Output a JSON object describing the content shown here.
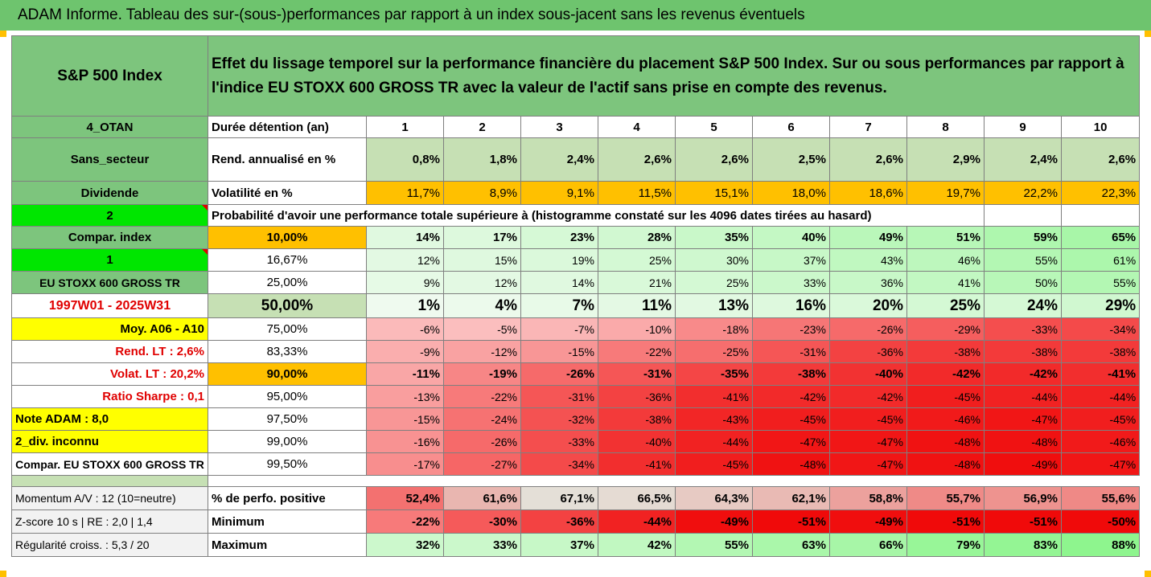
{
  "title": "ADAM Informe. Tableau des sur-(sous-)performances par rapport à un index sous-jacent sans les revenus éventuels",
  "header": {
    "asset": "S&P 500 Index",
    "description": "Effet du lissage temporel sur la performance financière du placement S&P 500 Index. Sur ou sous performances par rapport à l'indice EU STOXX 600 GROSS TR avec la valeur de l'actif sans prise en compte des revenus."
  },
  "years": [
    "1",
    "2",
    "3",
    "4",
    "5",
    "6",
    "7",
    "8",
    "9",
    "10"
  ],
  "rows": {
    "duration": {
      "left": "4_OTAN",
      "label": "Durée détention (an)"
    },
    "rend": {
      "left": "Sans_secteur",
      "label": "Rend. annualisé en %",
      "values": [
        "0,8%",
        "1,8%",
        "2,4%",
        "2,6%",
        "2,6%",
        "2,5%",
        "2,6%",
        "2,9%",
        "2,4%",
        "2,6%"
      ]
    },
    "vol": {
      "left": "Dividende",
      "label": "Volatilité en %",
      "values": [
        "11,7%",
        "8,9%",
        "9,1%",
        "11,5%",
        "15,1%",
        "18,0%",
        "18,6%",
        "19,7%",
        "22,2%",
        "22,3%"
      ]
    },
    "prob_header": {
      "left": "2",
      "label": "Probabilité d'avoir une performance totale supérieure à (histogramme constaté sur les 4096 dates tirées au hasard)"
    }
  },
  "percentile_rows": [
    {
      "left": "Compar. index",
      "pct": "10,00%",
      "values": [
        "14%",
        "17%",
        "23%",
        "28%",
        "35%",
        "40%",
        "49%",
        "51%",
        "59%",
        "65%"
      ]
    },
    {
      "left": "1",
      "pct": "16,67%",
      "values": [
        "12%",
        "15%",
        "19%",
        "25%",
        "30%",
        "37%",
        "43%",
        "46%",
        "55%",
        "61%"
      ]
    },
    {
      "left": "EU STOXX 600 GROSS TR",
      "pct": "25,00%",
      "values": [
        "9%",
        "12%",
        "14%",
        "21%",
        "25%",
        "33%",
        "36%",
        "41%",
        "50%",
        "55%"
      ]
    },
    {
      "left": "1997W01 - 2025W31",
      "pct": "50,00%",
      "values": [
        "1%",
        "4%",
        "7%",
        "11%",
        "13%",
        "16%",
        "20%",
        "25%",
        "24%",
        "29%"
      ]
    },
    {
      "left": "Moy. A06 - A10",
      "pct": "75,00%",
      "values": [
        "-6%",
        "-5%",
        "-7%",
        "-10%",
        "-18%",
        "-23%",
        "-26%",
        "-29%",
        "-33%",
        "-34%"
      ]
    },
    {
      "left": "Rend. LT :    2,6%",
      "pct": "83,33%",
      "values": [
        "-9%",
        "-12%",
        "-15%",
        "-22%",
        "-25%",
        "-31%",
        "-36%",
        "-38%",
        "-38%",
        "-38%"
      ]
    },
    {
      "left": "Volat. LT :   20,2%",
      "pct": "90,00%",
      "values": [
        "-11%",
        "-19%",
        "-26%",
        "-31%",
        "-35%",
        "-38%",
        "-40%",
        "-42%",
        "-42%",
        "-41%"
      ]
    },
    {
      "left": "Ratio Sharpe :   0,1",
      "pct": "95,00%",
      "values": [
        "-13%",
        "-22%",
        "-31%",
        "-36%",
        "-41%",
        "-42%",
        "-42%",
        "-45%",
        "-44%",
        "-44%"
      ]
    },
    {
      "left": "Note ADAM : 8,0",
      "pct": "97,50%",
      "values": [
        "-15%",
        "-24%",
        "-32%",
        "-38%",
        "-43%",
        "-45%",
        "-45%",
        "-46%",
        "-47%",
        "-45%"
      ]
    },
    {
      "left": "2_div. inconnu",
      "pct": "99,00%",
      "values": [
        "-16%",
        "-26%",
        "-33%",
        "-40%",
        "-44%",
        "-47%",
        "-47%",
        "-48%",
        "-48%",
        "-46%"
      ]
    },
    {
      "left": "Compar. EU STOXX 600 GROSS TR",
      "pct": "99,50%",
      "values": [
        "-17%",
        "-27%",
        "-34%",
        "-41%",
        "-45%",
        "-48%",
        "-47%",
        "-48%",
        "-49%",
        "-47%"
      ]
    }
  ],
  "summary_rows": [
    {
      "left": "Momentum A/V : 12 (10=neutre)",
      "label": "% de perfo. positive",
      "values": [
        "52,4%",
        "61,6%",
        "67,1%",
        "66,5%",
        "64,3%",
        "62,1%",
        "58,8%",
        "55,7%",
        "56,9%",
        "55,6%"
      ]
    },
    {
      "left": "Z-score 10 s  |  RE : 2,0  |  1,4",
      "label": "Minimum",
      "values": [
        "-22%",
        "-30%",
        "-36%",
        "-44%",
        "-49%",
        "-51%",
        "-49%",
        "-51%",
        "-51%",
        "-50%"
      ]
    },
    {
      "left": "Régularité croiss. : 5,3 / 20",
      "label": "Maximum",
      "values": [
        "32%",
        "33%",
        "37%",
        "42%",
        "55%",
        "63%",
        "66%",
        "79%",
        "83%",
        "88%"
      ]
    }
  ],
  "colors": {
    "header_green": "#7dc57d",
    "light_green": "#c6e0b4",
    "bright_green": "#00e600",
    "yellow": "#ffff00",
    "orange": "#ffc000",
    "red_text": "#e00000"
  }
}
